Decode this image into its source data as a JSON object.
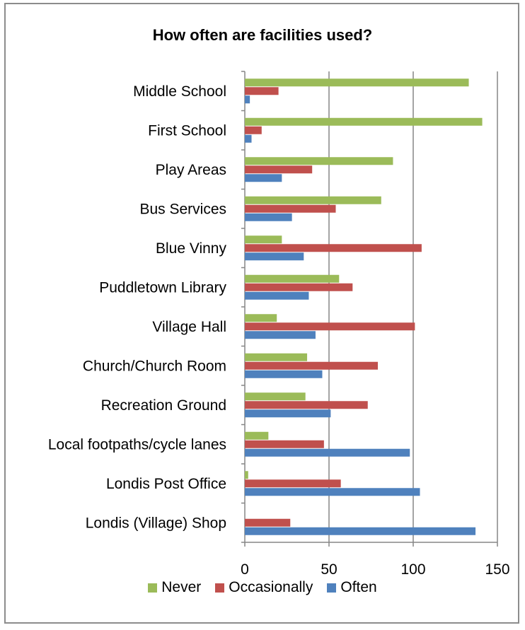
{
  "chart_data": {
    "type": "bar",
    "orientation": "horizontal",
    "title": "How often are facilities used?",
    "xlabel": "",
    "ylabel": "",
    "xlim": [
      0,
      150
    ],
    "x_ticks": [
      0,
      50,
      100,
      150
    ],
    "grid": true,
    "legend_position": "bottom",
    "categories": [
      "Middle School",
      "First School",
      "Play Areas",
      "Bus Services",
      "Blue Vinny",
      "Puddletown Library",
      "Village Hall",
      "Church/Church Room",
      "Recreation Ground",
      "Local footpaths/cycle lanes",
      "Londis Post Office",
      "Londis (Village) Shop"
    ],
    "series": [
      {
        "name": "Never",
        "color": "#9BBB59",
        "values": [
          133,
          141,
          88,
          81,
          22,
          56,
          19,
          37,
          36,
          14,
          2,
          0
        ]
      },
      {
        "name": "Occasionally",
        "color": "#C0504D",
        "values": [
          20,
          10,
          40,
          54,
          105,
          64,
          101,
          79,
          73,
          47,
          57,
          27
        ]
      },
      {
        "name": "Often",
        "color": "#4F81BD",
        "values": [
          3,
          4,
          22,
          28,
          35,
          38,
          42,
          46,
          51,
          98,
          104,
          137
        ]
      }
    ]
  }
}
